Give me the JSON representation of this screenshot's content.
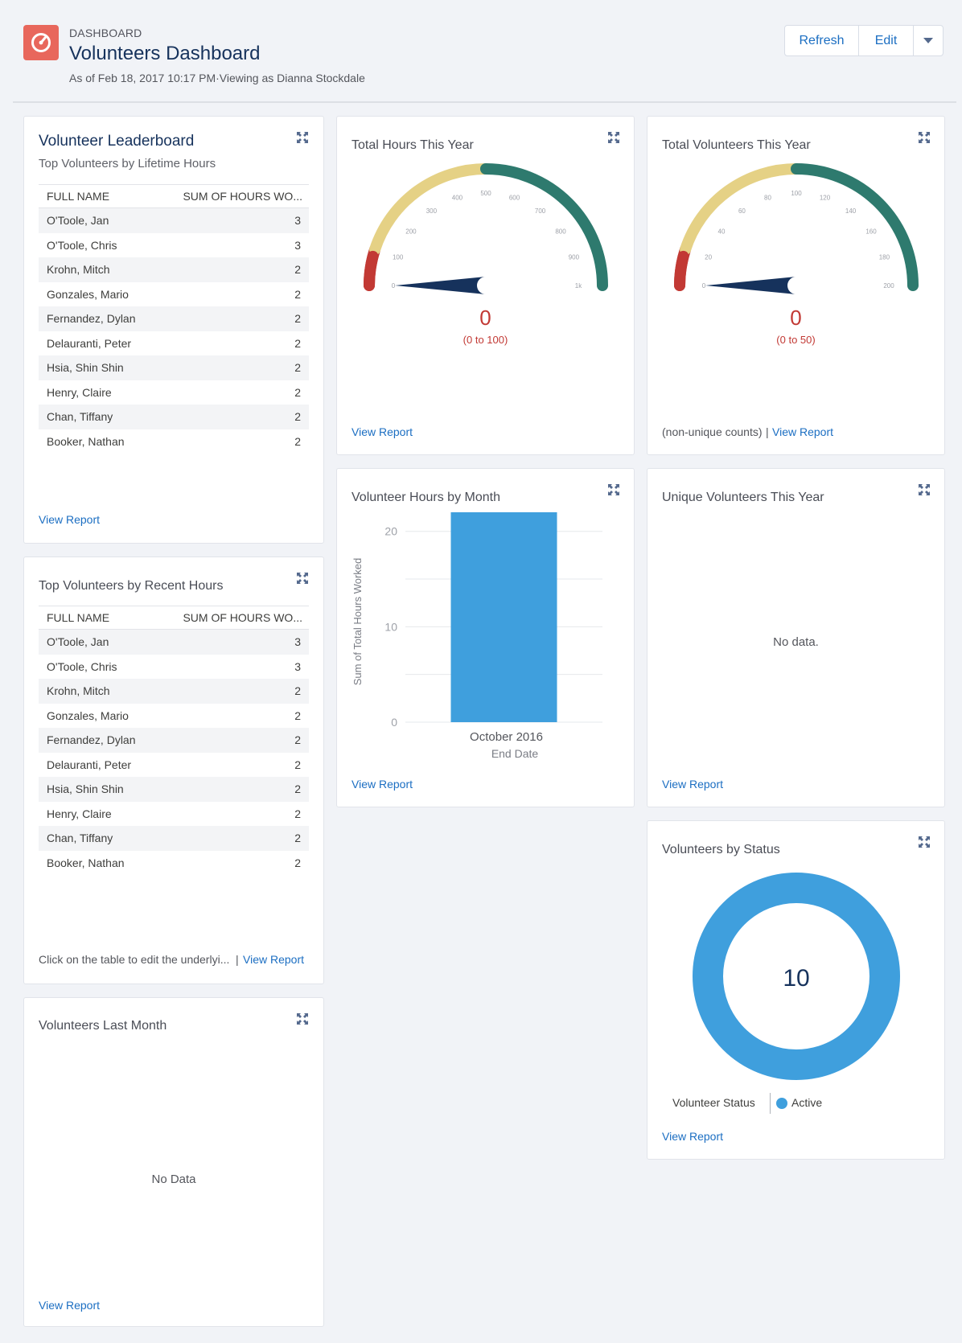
{
  "header": {
    "breadcrumb": "DASHBOARD",
    "title": "Volunteers Dashboard",
    "subtitle": "As of Feb 18, 2017 10:17 PM·Viewing as Dianna Stockdale",
    "buttons": {
      "refresh": "Refresh",
      "edit": "Edit"
    }
  },
  "leaderboard": {
    "title": "Volunteer Leaderboard",
    "subtitle": "Top Volunteers by Lifetime Hours",
    "columns": [
      "FULL NAME",
      "SUM OF HOURS WO..."
    ],
    "rows": [
      {
        "name": "O'Toole, Jan",
        "value": "3"
      },
      {
        "name": "O'Toole, Chris",
        "value": "3"
      },
      {
        "name": "Krohn, Mitch",
        "value": "2"
      },
      {
        "name": "Gonzales, Mario",
        "value": "2"
      },
      {
        "name": "Fernandez, Dylan",
        "value": "2"
      },
      {
        "name": "Delauranti, Peter",
        "value": "2"
      },
      {
        "name": "Hsia, Shin Shin",
        "value": "2"
      },
      {
        "name": "Henry, Claire",
        "value": "2"
      },
      {
        "name": "Chan, Tiffany",
        "value": "2"
      },
      {
        "name": "Booker, Nathan",
        "value": "2"
      }
    ],
    "link": "View Report"
  },
  "recent": {
    "title": "Top Volunteers by Recent Hours",
    "columns": [
      "FULL NAME",
      "SUM OF HOURS WO..."
    ],
    "rows": [
      {
        "name": "O'Toole, Jan",
        "value": "3"
      },
      {
        "name": "O'Toole, Chris",
        "value": "3"
      },
      {
        "name": "Krohn, Mitch",
        "value": "2"
      },
      {
        "name": "Gonzales, Mario",
        "value": "2"
      },
      {
        "name": "Fernandez, Dylan",
        "value": "2"
      },
      {
        "name": "Delauranti, Peter",
        "value": "2"
      },
      {
        "name": "Hsia, Shin Shin",
        "value": "2"
      },
      {
        "name": "Henry, Claire",
        "value": "2"
      },
      {
        "name": "Chan, Tiffany",
        "value": "2"
      },
      {
        "name": "Booker, Nathan",
        "value": "2"
      }
    ],
    "footer_text": "Click on the table to edit the underlyi...",
    "footer_sep": "|",
    "link": "View Report"
  },
  "last_month": {
    "title": "Volunteers Last Month",
    "empty": "No Data",
    "link": "View Report"
  },
  "hours_gauge": {
    "title": "Total Hours This Year",
    "value": "0",
    "range": "(0 to 100)",
    "ticks": [
      "0",
      "100",
      "200",
      "300",
      "400",
      "500",
      "600",
      "700",
      "800",
      "900",
      "1k"
    ],
    "link": "View Report"
  },
  "volunteers_gauge": {
    "title": "Total Volunteers This Year",
    "value": "0",
    "range": "(0 to 50)",
    "ticks": [
      "0",
      "20",
      "40",
      "60",
      "80",
      "100",
      "120",
      "140",
      "160",
      "180",
      "200"
    ],
    "footer_text": "(non-unique counts)",
    "footer_sep": "|",
    "link": "View Report"
  },
  "gauge_colors": {
    "low": "#c23934",
    "mid": "#e5d185",
    "high": "#2e7a6e",
    "needle": "#16325c"
  },
  "hours_by_month": {
    "title": "Volunteer Hours by Month",
    "link": "View Report"
  },
  "unique": {
    "title": "Unique Volunteers This Year",
    "empty": "No data.",
    "link": "View Report"
  },
  "status": {
    "title": "Volunteers by Status",
    "total": "10",
    "legend_title": "Volunteer Status",
    "legend_items": [
      {
        "label": "Active",
        "color": "#3f9fdd"
      }
    ],
    "link": "View Report"
  },
  "chart_data": {
    "type": "bar",
    "categories": [
      "October 2016"
    ],
    "values": [
      22
    ],
    "xlabel": "End Date",
    "ylabel": "Sum of Total Hours Worked",
    "ylim": [
      0,
      22
    ],
    "yticks": [
      "0",
      "10",
      "20"
    ],
    "color": "#3f9fdd",
    "grid": true
  }
}
